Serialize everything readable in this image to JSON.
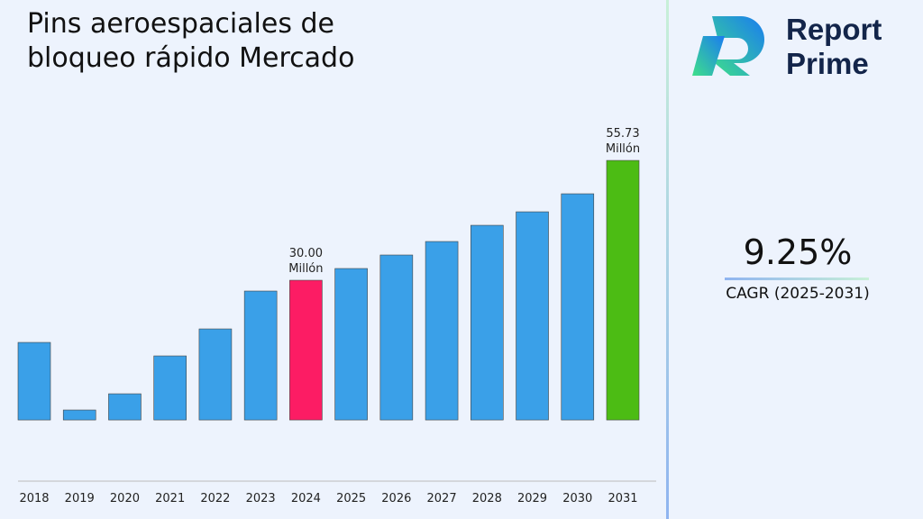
{
  "chart_data": {
    "type": "bar",
    "title": "Pins aeroespaciales de bloqueo rápido Mercado",
    "categories": [
      "2018",
      "2019",
      "2020",
      "2021",
      "2022",
      "2023",
      "2024",
      "2025",
      "2026",
      "2027",
      "2028",
      "2029",
      "2030",
      "2031"
    ],
    "values": [
      16.65,
      2.14,
      5.62,
      13.75,
      19.55,
      27.68,
      30.0,
      32.52,
      35.42,
      38.32,
      41.8,
      44.7,
      48.57,
      55.73
    ],
    "value_labels": [
      null,
      null,
      null,
      null,
      null,
      null,
      "30.00 Millón",
      null,
      null,
      null,
      null,
      null,
      null,
      "55.73 Millón"
    ],
    "colors": [
      "#3aa0e8",
      "#3aa0e8",
      "#3aa0e8",
      "#3aa0e8",
      "#3aa0e8",
      "#3aa0e8",
      "#fc1c64",
      "#3aa0e8",
      "#3aa0e8",
      "#3aa0e8",
      "#3aa0e8",
      "#3aa0e8",
      "#3aa0e8",
      "#4cbc14"
    ],
    "ylim": [
      -13.14,
      61.93
    ]
  },
  "logo": {
    "line1": "Report",
    "line2": "Prime"
  },
  "cagr": {
    "value": "9.25%",
    "label": "CAGR (2025-2031)"
  }
}
